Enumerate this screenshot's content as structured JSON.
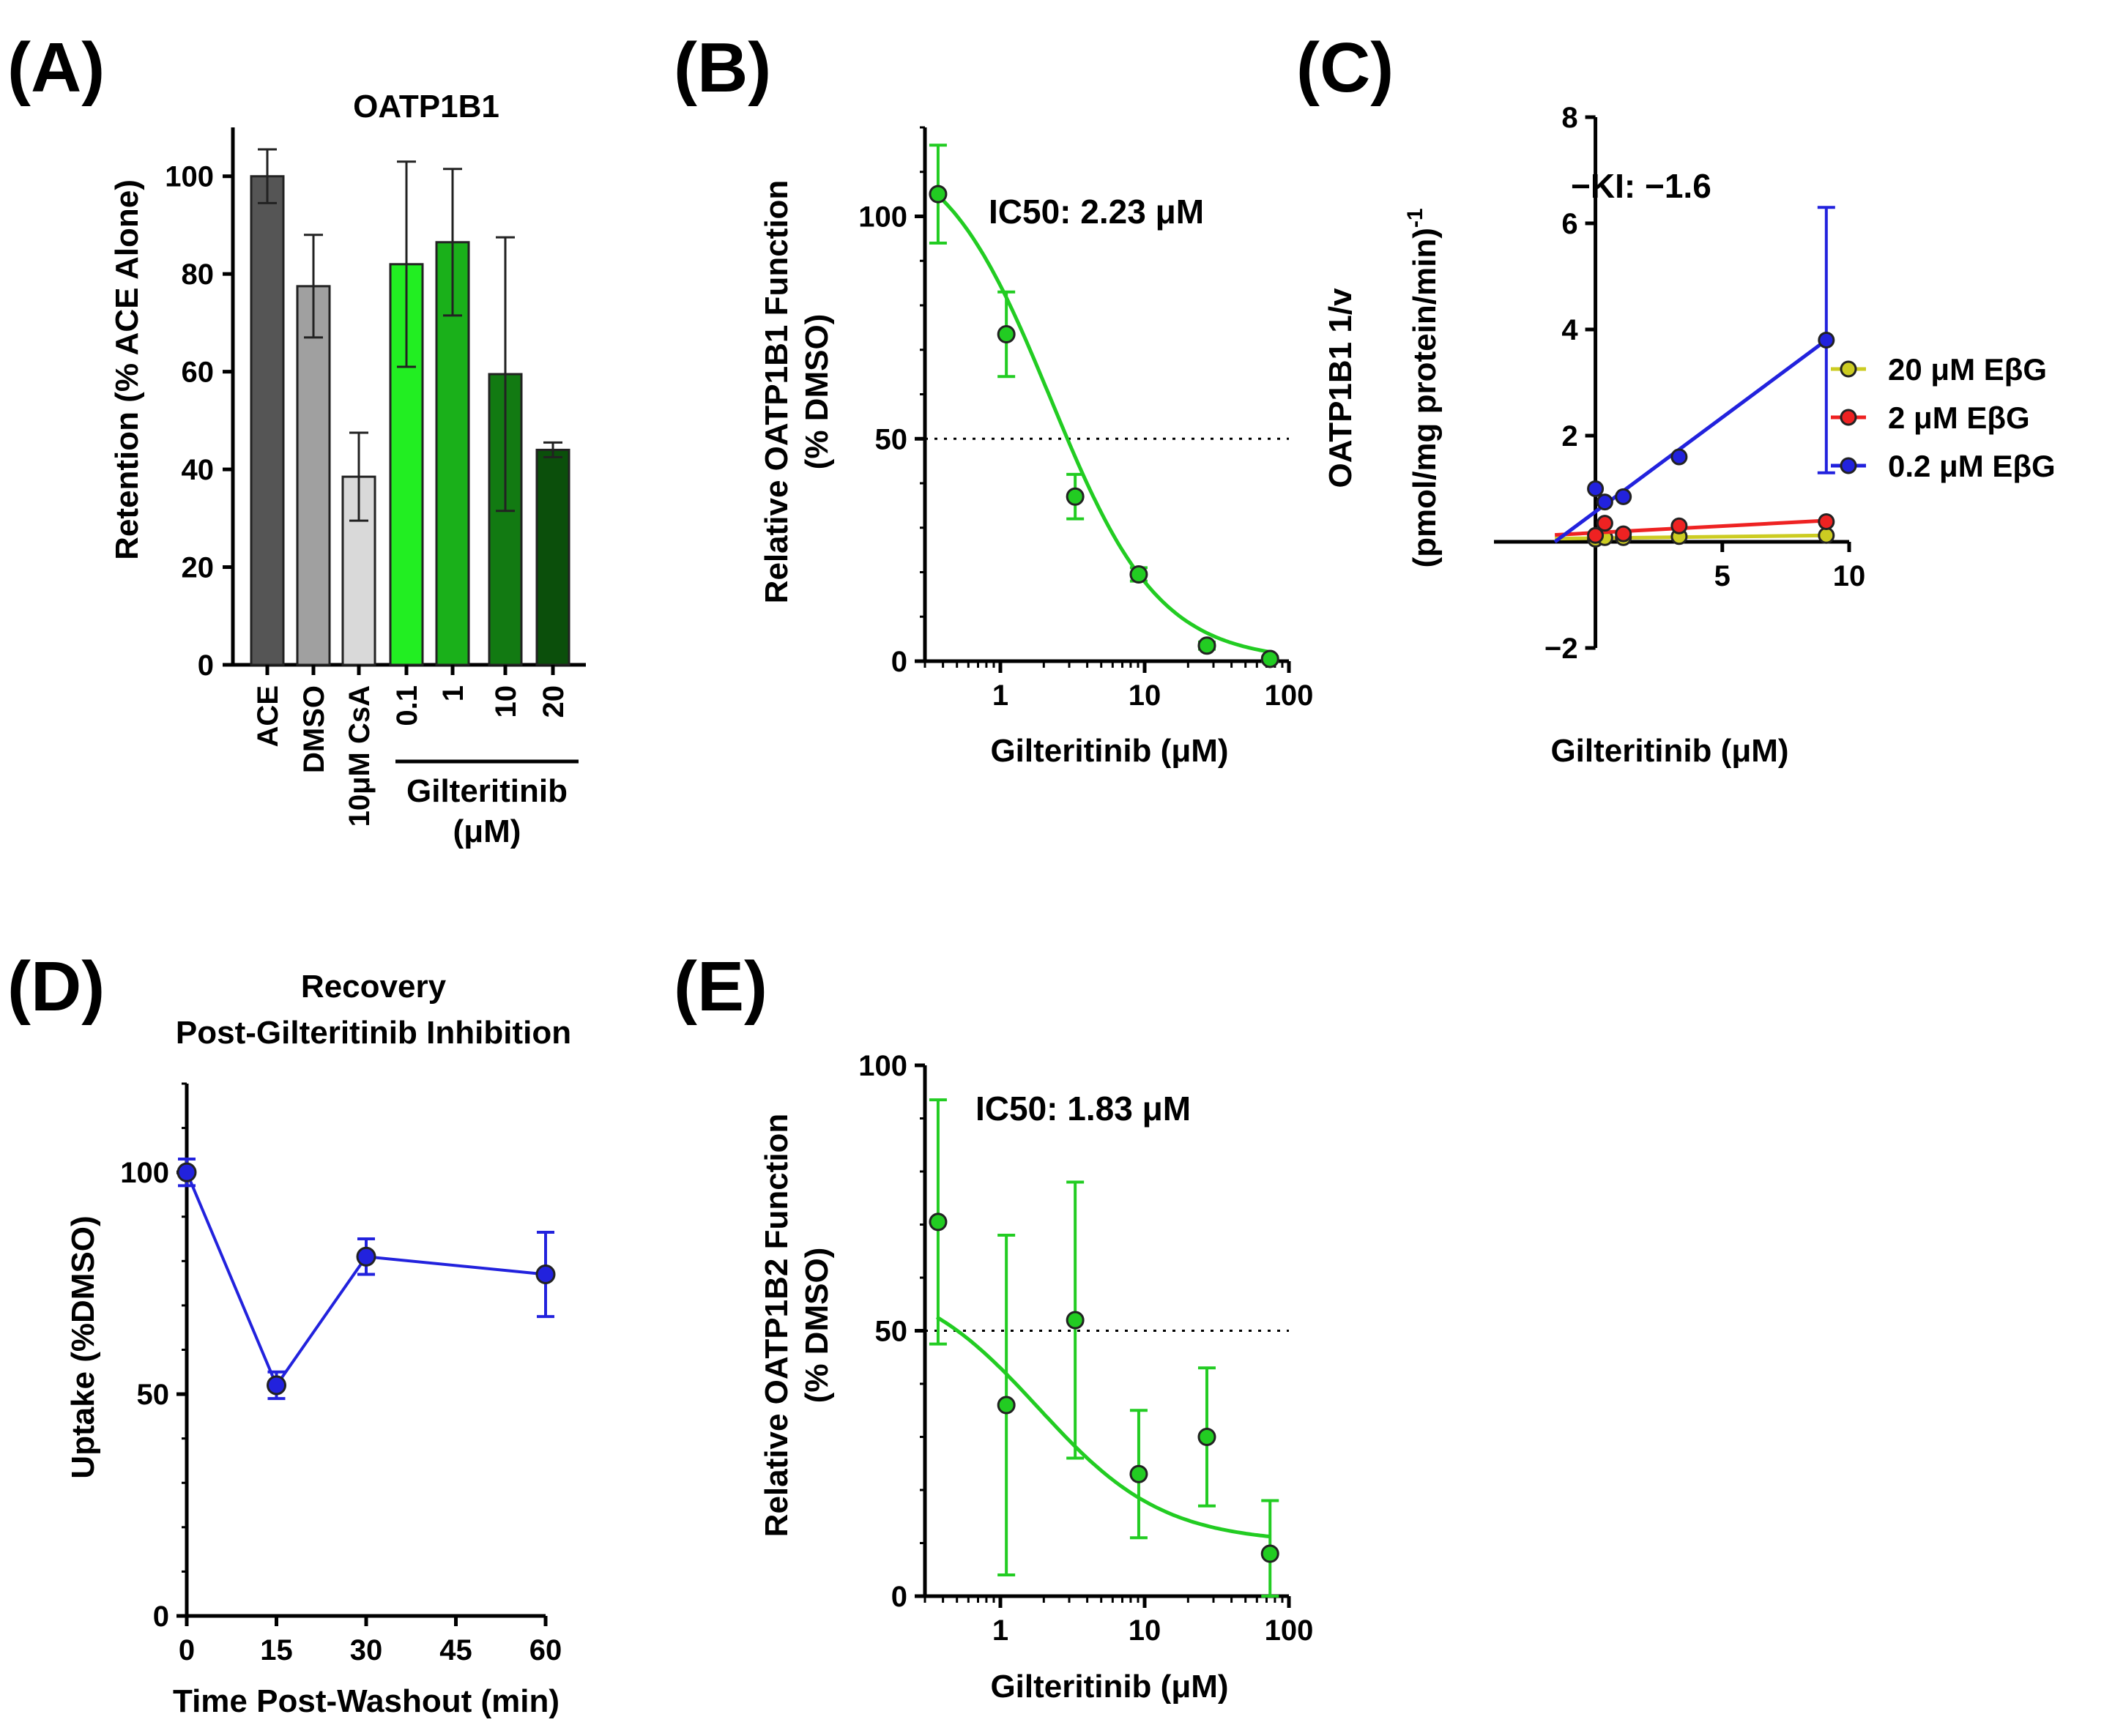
{
  "panels": {
    "A": {
      "letter": "(A)",
      "title": "OATP1B1",
      "ylabel": "Retention (% ACE Alone)",
      "yticks": [
        "0",
        "20",
        "40",
        "60",
        "80",
        "100"
      ],
      "group_label_line1": "Gilteritinib",
      "group_label_line2": "(μM)"
    },
    "B": {
      "letter": "(B)",
      "ylabel_line1": "Relative OATP1B1 Function",
      "ylabel_line2": "(% DMSO)",
      "xlabel": "Gilteritinib (μM)",
      "annotation": "IC50: 2.23 μM",
      "yticks": [
        "0",
        "50",
        "100"
      ],
      "xticks": [
        "1",
        "10",
        "100"
      ]
    },
    "C": {
      "letter": "(C)",
      "ylabel_line1": "OATP1B1 1/v",
      "ylabel_line2": "(pmol/mg protein/min)",
      "ylabel_sup": "-1",
      "xlabel": "Gilteritinib (μM)",
      "annotation": "−KI: −1.6",
      "yticks": [
        "−2",
        "2",
        "4",
        "6",
        "8"
      ],
      "xticks": [
        "5",
        "10"
      ]
    },
    "D": {
      "letter": "(D)",
      "title_line1": "Recovery",
      "title_line2": "Post-Gilteritinib Inhibition",
      "ylabel": "Uptake (%DMSO)",
      "xlabel": "Time Post-Washout (min)",
      "yticks": [
        "0",
        "50",
        "100"
      ],
      "xticks": [
        "0",
        "15",
        "30",
        "45",
        "60"
      ]
    },
    "E": {
      "letter": "(E)",
      "ylabel_line1": "Relative OATP1B2 Function",
      "ylabel_line2": "(% DMSO)",
      "xlabel": "Gilteritinib (μM)",
      "annotation": "IC50: 1.83 μM",
      "yticks": [
        "0",
        "50",
        "100"
      ],
      "xticks": [
        "1",
        "10",
        "100"
      ]
    }
  },
  "chart_data": [
    {
      "panel": "A",
      "type": "bar",
      "title": "OATP1B1",
      "ylabel": "Retention (% ACE Alone)",
      "ylim": [
        0,
        110
      ],
      "categories": [
        "ACE",
        "DMSO",
        "10μM CsA",
        "0.1",
        "1",
        "10",
        "20"
      ],
      "values": [
        100,
        77.5,
        38.5,
        82,
        86.5,
        59.5,
        44
      ],
      "errors": [
        5.5,
        10.5,
        9,
        21,
        15,
        28,
        1.5
      ],
      "colors": [
        "#555555",
        "#a0a0a0",
        "#d9d9d9",
        "#22ee22",
        "#1ab01a",
        "#127a12",
        "#0b4f0b"
      ]
    },
    {
      "panel": "B",
      "type": "scatter",
      "xscale": "log",
      "xlim": [
        0.3,
        100
      ],
      "ylim": [
        0,
        120
      ],
      "xlabel": "Gilteritinib (μM)",
      "ylabel": "Relative OATP1B1 Function (% DMSO)",
      "x": [
        0.37,
        1.1,
        3.3,
        9.1,
        27,
        74
      ],
      "y": [
        105,
        73.5,
        37,
        19.5,
        3.5,
        0.5
      ],
      "errors": [
        11,
        9.5,
        5,
        1.5,
        0.8,
        0.5
      ],
      "fit": {
        "model": "dose-response",
        "ic50": 2.23,
        "top": 118,
        "bottom": 0,
        "hill": 1.15
      },
      "reference_line": 50,
      "color": "#22cc22"
    },
    {
      "panel": "C",
      "type": "line",
      "xlim": [
        -4,
        10
      ],
      "ylim": [
        -2,
        8
      ],
      "xlabel": "Gilteritinib (μM)",
      "ylabel": "OATP1B1 1/v (pmol/mg protein/min)-1",
      "legend_position": "right",
      "series": [
        {
          "name": "20 μM EβG",
          "color": "#cccc22",
          "x": [
            0,
            0.37,
            1.1,
            3.3,
            9.1
          ],
          "y": [
            0.05,
            0.08,
            0.08,
            0.1,
            0.12
          ],
          "fit": [
            [
              -1.6,
              0.06
            ],
            [
              9.1,
              0.12
            ]
          ]
        },
        {
          "name": "2 μM EβG",
          "color": "#ee2222",
          "x": [
            0,
            0.37,
            1.1,
            3.3,
            9.1
          ],
          "y": [
            0.12,
            0.35,
            0.15,
            0.3,
            0.38
          ],
          "fit": [
            [
              -1.6,
              0.13
            ],
            [
              9.1,
              0.4
            ]
          ]
        },
        {
          "name": "0.2 μM EβG",
          "color": "#2222dd",
          "x": [
            0,
            0.37,
            1.1,
            3.3,
            9.1
          ],
          "y": [
            1.0,
            0.75,
            0.85,
            1.6,
            3.8
          ],
          "errors": [
            0,
            0,
            0,
            0,
            2.5
          ],
          "fit": [
            [
              -1.6,
              0.0
            ],
            [
              9.1,
              3.8
            ]
          ]
        }
      ]
    },
    {
      "panel": "D",
      "type": "line",
      "title": "Recovery Post-Gilteritinib Inhibition",
      "xlim": [
        0,
        60
      ],
      "ylim": [
        0,
        120
      ],
      "xlabel": "Time Post-Washout (min)",
      "ylabel": "Uptake (%DMSO)",
      "x": [
        0,
        15,
        30,
        60
      ],
      "y": [
        100,
        52,
        81,
        77
      ],
      "errors": [
        3,
        3,
        4,
        9.5
      ],
      "color": "#2222dd"
    },
    {
      "panel": "E",
      "type": "scatter",
      "xscale": "log",
      "xlim": [
        0.3,
        100
      ],
      "ylim": [
        0,
        100
      ],
      "xlabel": "Gilteritinib (μM)",
      "ylabel": "Relative OATP1B2 Function (% DMSO)",
      "x": [
        0.37,
        1.1,
        3.3,
        9.1,
        27,
        74
      ],
      "y": [
        70.5,
        36,
        52,
        23,
        30,
        8
      ],
      "errors": [
        23,
        32,
        26,
        12,
        13,
        10
      ],
      "fit": {
        "model": "dose-response",
        "ic50": 1.83,
        "top": 61,
        "bottom": 10,
        "hill": 1.0
      },
      "reference_line": 50,
      "color": "#22cc22"
    }
  ]
}
